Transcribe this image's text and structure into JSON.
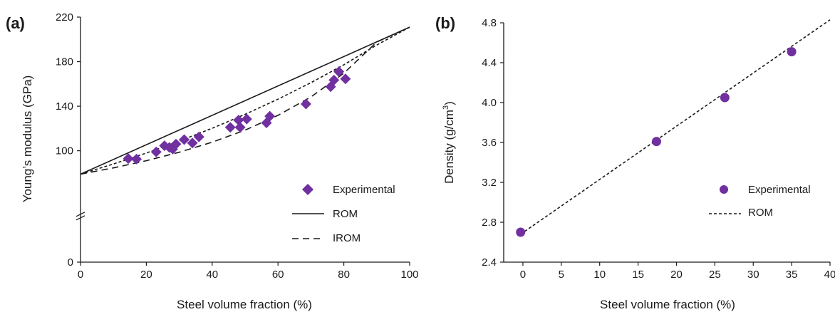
{
  "chart_data": [
    {
      "type": "scatter",
      "panel_label": "(a)",
      "xlabel": "Steel volume fraction (%)",
      "ylabel": "Young’s modulus (GPa)",
      "xlim": [
        0,
        100
      ],
      "ylim": [
        0,
        220
      ],
      "xticks": [
        0,
        20,
        40,
        60,
        80,
        100
      ],
      "yticks": [
        0,
        100,
        140,
        180,
        220
      ],
      "yaxis_break": true,
      "legend_position": "right",
      "colors": {
        "marker": "#7030a0",
        "line": "#1a1a1a"
      },
      "series": [
        {
          "name": "Experimental",
          "kind": "marker-diamond",
          "points": [
            [
              14.5,
              93
            ],
            [
              17,
              92.5
            ],
            [
              23,
              99
            ],
            [
              25.5,
              104.5
            ],
            [
              27,
              103
            ],
            [
              28,
              101.5
            ],
            [
              29,
              106
            ],
            [
              31.5,
              110
            ],
            [
              34,
              107
            ],
            [
              36,
              112.5
            ],
            [
              45.5,
              121
            ],
            [
              48,
              127.5
            ],
            [
              48.5,
              121
            ],
            [
              50.5,
              128.5
            ],
            [
              56.5,
              125
            ],
            [
              57.5,
              131
            ],
            [
              68.5,
              142
            ],
            [
              76,
              157.5
            ],
            [
              77,
              163.5
            ],
            [
              78.5,
              171
            ],
            [
              80.5,
              164.5
            ]
          ]
        },
        {
          "name": "ROM",
          "kind": "line-solid",
          "points": [
            [
              0,
              79
            ],
            [
              100,
              211
            ]
          ]
        },
        {
          "name": "IROM",
          "kind": "line-dashed",
          "points": [
            [
              0,
              79
            ],
            [
              10,
              84.6
            ],
            [
              20,
              91.1
            ],
            [
              30,
              98.7
            ],
            [
              40,
              107.7
            ],
            [
              50,
              118.5
            ],
            [
              60,
              131.8
            ],
            [
              70,
              148.3
            ],
            [
              80,
              169.6
            ],
            [
              90,
              197.6
            ],
            [
              100,
              211
            ]
          ]
        },
        {
          "name": "",
          "kind": "line-short-dash",
          "points": [
            [
              0,
              79
            ],
            [
              10,
              88.1
            ],
            [
              20,
              98
            ],
            [
              30,
              108.7
            ],
            [
              40,
              120.2
            ],
            [
              50,
              132.7
            ],
            [
              60,
              146.3
            ],
            [
              70,
              161.1
            ],
            [
              80,
              177.2
            ],
            [
              90,
              194.9
            ],
            [
              100,
              211
            ]
          ]
        }
      ]
    },
    {
      "type": "scatter",
      "panel_label": "(b)",
      "xlabel": "Steel volume fraction (%)",
      "ylabel_parts": {
        "main": "Density (g/cm",
        "sup": "3",
        "end": ")"
      },
      "xlim": [
        -2.5,
        40
      ],
      "ylim": [
        2.4,
        4.8
      ],
      "xticks": [
        0,
        5,
        10,
        15,
        20,
        25,
        30,
        35,
        40
      ],
      "yticks": [
        2.4,
        2.8,
        3.2,
        3.6,
        4.0,
        4.4,
        4.8
      ],
      "ytick_labels": [
        "2.4",
        "2.8",
        "3.2",
        "3.6",
        "4.0",
        "4.4",
        "4.8"
      ],
      "legend_position": "right",
      "colors": {
        "marker": "#7030a0",
        "line": "#1a1a1a"
      },
      "series": [
        {
          "name": "Experimental",
          "kind": "marker-circle",
          "points": [
            [
              -0.3,
              2.7
            ],
            [
              17.4,
              3.61
            ],
            [
              26.3,
              4.05
            ],
            [
              35,
              4.51
            ]
          ]
        },
        {
          "name": "ROM",
          "kind": "line-short-dash",
          "points": [
            [
              -0.3,
              2.68
            ],
            [
              40,
              4.83
            ]
          ]
        }
      ]
    }
  ]
}
